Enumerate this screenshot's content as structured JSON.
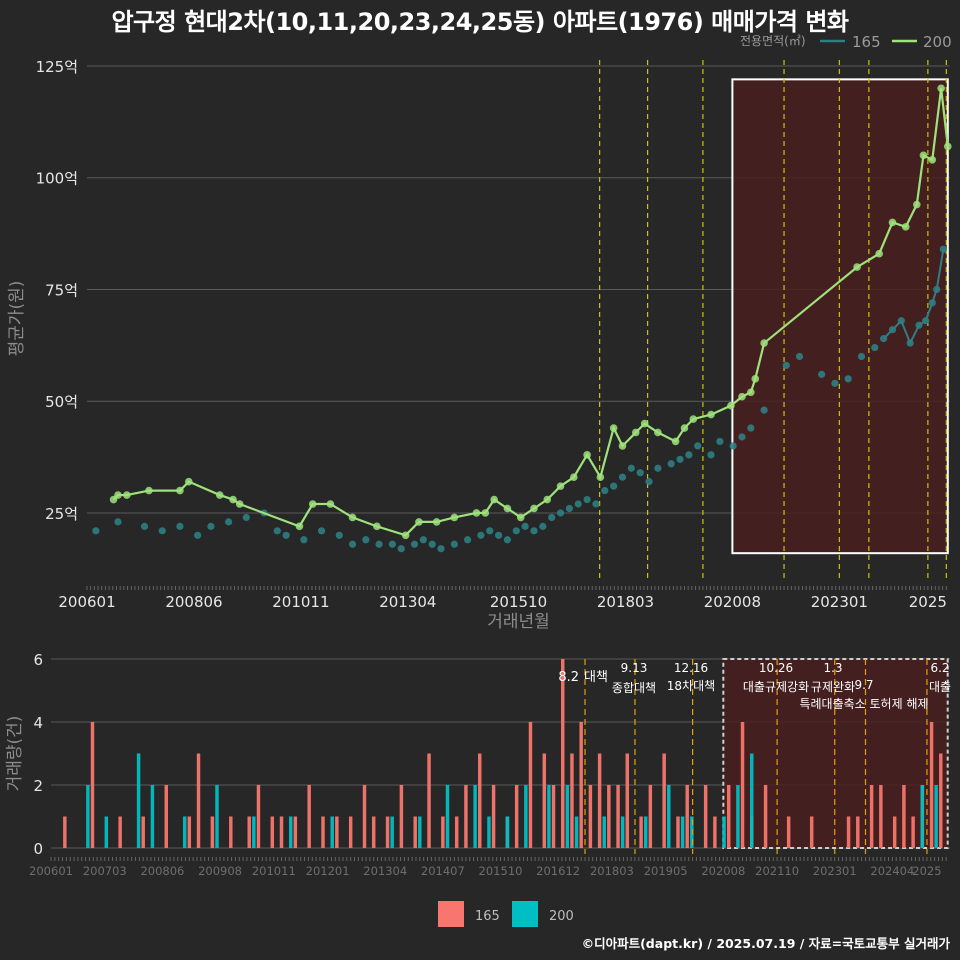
{
  "title": "압구정 현대2차(10,11,20,23,24,25동) 아파트(1976) 매매가격 변화",
  "credit": "©디아파트(dapt.kr) / 2025.07.19 / 자료=국토교통부 실거래가",
  "colors": {
    "background": "#272727",
    "s165_price": "#2e7f84",
    "s200_price": "#9ee27c",
    "s165_volume": "#f8766d",
    "s200_volume": "#00bfc4",
    "policy_line": "#c8c800",
    "policy_line_volume": "#e6a000",
    "highlight": "#4a1e1e"
  },
  "chart_data": [
    {
      "type": "line",
      "chart_id": "price",
      "ylabel": "평균가(원)",
      "xlabel": "거래년월",
      "ylim": [
        10,
        127
      ],
      "yticks": [
        25,
        50,
        75,
        100,
        125
      ],
      "ytick_labels": [
        "25억",
        "50억",
        "75억",
        "100억",
        "125억"
      ],
      "xlim": [
        2006.0,
        2025.5
      ],
      "xticks": [
        2006.0,
        2008.417,
        2010.833,
        2013.25,
        2015.75,
        2018.167,
        2020.583,
        2023.0,
        2025.0
      ],
      "xtick_labels": [
        "200601",
        "200806",
        "201011",
        "201304",
        "201510",
        "201803",
        "202008",
        "202301",
        "2025"
      ],
      "legend": {
        "title": "전용면적(㎡)",
        "position": "top-right",
        "items": [
          "165",
          "200"
        ]
      },
      "grid": true,
      "policy_lines": [
        2017.583,
        2018.667,
        2019.917,
        2021.75,
        2023.0,
        2023.667,
        2025.0,
        2025.417
      ],
      "highlight_box": {
        "x0": 2020.583,
        "x1": 2025.45,
        "y0": 16,
        "y1": 122
      },
      "series": [
        {
          "name": "200",
          "x": [
            2006.6,
            2006.7,
            2006.9,
            2007.4,
            2008.1,
            2008.3,
            2009.0,
            2009.3,
            2009.45,
            2010.8,
            2011.1,
            2011.5,
            2012.0,
            2012.55,
            2013.2,
            2013.5,
            2013.9,
            2014.3,
            2014.8,
            2015.0,
            2015.2,
            2015.5,
            2015.8,
            2016.1,
            2016.4,
            2016.7,
            2017.0,
            2017.3,
            2017.6,
            2017.9,
            2018.1,
            2018.4,
            2018.6,
            2018.9,
            2019.3,
            2019.5,
            2019.7,
            2020.1,
            2020.55,
            2020.8,
            2021.0,
            2021.1,
            2021.3,
            2023.4,
            2023.9,
            2024.2,
            2024.5,
            2024.75,
            2024.9,
            2025.1,
            2025.3,
            2025.45
          ],
          "y": [
            28,
            29,
            29,
            30,
            30,
            32,
            29,
            28,
            27,
            22,
            27,
            27,
            24,
            22,
            20,
            23,
            23,
            24,
            25,
            25,
            28,
            26,
            24,
            26,
            28,
            31,
            33,
            38,
            33,
            44,
            40,
            43,
            45,
            43,
            41,
            44,
            46,
            47,
            49,
            51,
            52,
            55,
            63,
            80,
            83,
            90,
            89,
            94,
            105,
            104,
            120,
            107
          ]
        },
        {
          "name": "165",
          "x": [
            2006.2,
            2006.7,
            2007.3,
            2007.7,
            2008.1,
            2008.5,
            2008.8,
            2009.2,
            2009.6,
            2010.0,
            2010.3,
            2010.5,
            2010.9,
            2011.3,
            2011.7,
            2012.0,
            2012.3,
            2012.6,
            2012.9,
            2013.1,
            2013.4,
            2013.6,
            2013.8,
            2014.0,
            2014.3,
            2014.6,
            2014.9,
            2015.1,
            2015.3,
            2015.5,
            2015.7,
            2015.9,
            2016.1,
            2016.3,
            2016.5,
            2016.7,
            2016.9,
            2017.1,
            2017.3,
            2017.5,
            2017.7,
            2017.9,
            2018.1,
            2018.3,
            2018.5,
            2018.7,
            2018.9,
            2019.2,
            2019.4,
            2019.6,
            2019.8,
            2020.1,
            2020.3,
            2020.6,
            2020.8,
            2021.0,
            2021.3,
            2021.8,
            2022.1,
            2022.6,
            2022.9,
            2023.2,
            2023.5,
            2023.8,
            2024.0,
            2024.2,
            2024.4,
            2024.6,
            2024.8,
            2024.95,
            2025.1,
            2025.2,
            2025.35
          ],
          "y": [
            21,
            23,
            22,
            21,
            22,
            20,
            22,
            23,
            24,
            25,
            21,
            20,
            19,
            21,
            20,
            18,
            19,
            18,
            18,
            17,
            18,
            19,
            18,
            17,
            18,
            19,
            20,
            21,
            20,
            19,
            21,
            22,
            21,
            22,
            24,
            25,
            26,
            27,
            28,
            27,
            30,
            31,
            33,
            35,
            34,
            32,
            35,
            36,
            37,
            38,
            40,
            38,
            41,
            40,
            42,
            44,
            48,
            58,
            60,
            56,
            54,
            55,
            60,
            62,
            64,
            66,
            68,
            63,
            67,
            68,
            72,
            75,
            84
          ]
        }
      ]
    },
    {
      "type": "bar",
      "chart_id": "volume",
      "ylabel": "거래량(건)",
      "ylim": [
        0,
        6
      ],
      "yticks": [
        0,
        2,
        4,
        6
      ],
      "ytick_labels": [
        "0",
        "2",
        "4",
        "6"
      ],
      "xlim": [
        2006.0,
        2025.5
      ],
      "xticks": [
        2006.0,
        2007.167,
        2008.417,
        2009.667,
        2010.833,
        2012.0,
        2013.25,
        2014.5,
        2015.75,
        2017.0,
        2018.167,
        2019.333,
        2020.583,
        2021.75,
        2023.0,
        2024.25,
        2025.0
      ],
      "xtick_labels": [
        "200601",
        "200703",
        "200806",
        "200908",
        "201011",
        "201201",
        "201304",
        "201407",
        "201510",
        "201612",
        "201803",
        "201905",
        "202008",
        "202110",
        "202301",
        "202404",
        "2025"
      ],
      "legend": {
        "position": "bottom",
        "items": [
          "165",
          "200"
        ]
      },
      "grid": true,
      "highlight_box": {
        "x0": 2020.583,
        "x1": 2025.45,
        "y0": 0,
        "y1": 6
      },
      "annotations": [
        {
          "x": 2017.583,
          "date": "8.2",
          "label": "대책"
        },
        {
          "x": 2018.667,
          "date": "9.13",
          "label": "종합대책"
        },
        {
          "x": 2019.917,
          "date": "12.16",
          "label": "18차대책"
        },
        {
          "x": 2021.75,
          "date": "10.26",
          "label": "대출규제강화"
        },
        {
          "x": 2023.0,
          "date": "1.3",
          "label": "규제완화"
        },
        {
          "x": 2023.667,
          "date": "9.7",
          "label": "특례대출축소 토허제 해제"
        },
        {
          "x": 2025.0,
          "date": "6.2",
          "label": "대출"
        }
      ],
      "series": [
        {
          "name": "165",
          "x": [
            2006.3,
            2006.9,
            2007.5,
            2008.0,
            2008.5,
            2009.0,
            2009.2,
            2009.5,
            2009.9,
            2010.3,
            2010.5,
            2010.8,
            2011.0,
            2011.3,
            2011.6,
            2011.9,
            2012.2,
            2012.5,
            2012.8,
            2013.0,
            2013.3,
            2013.6,
            2013.9,
            2014.2,
            2014.5,
            2014.8,
            2015.0,
            2015.3,
            2015.6,
            2015.9,
            2016.1,
            2016.4,
            2016.7,
            2016.9,
            2017.1,
            2017.3,
            2017.5,
            2017.7,
            2017.9,
            2018.1,
            2018.3,
            2018.5,
            2018.8,
            2019.0,
            2019.3,
            2019.6,
            2019.8,
            2020.2,
            2020.4,
            2020.7,
            2021.0,
            2021.2,
            2021.5,
            2022.0,
            2022.5,
            2023.3,
            2023.5,
            2023.8,
            2024.0,
            2024.3,
            2024.5,
            2024.7,
            2024.9,
            2025.1,
            2025.3
          ],
          "y": [
            1,
            4,
            1,
            1,
            2,
            1,
            3,
            1,
            1,
            1,
            2,
            1,
            1,
            1,
            2,
            1,
            1,
            1,
            2,
            1,
            1,
            2,
            1,
            3,
            1,
            1,
            2,
            3,
            2,
            1,
            2,
            4,
            3,
            2,
            6,
            3,
            4,
            2,
            3,
            2,
            2,
            3,
            1,
            2,
            3,
            1,
            2,
            2,
            1,
            2,
            4,
            1,
            2,
            1,
            1,
            1,
            1,
            2,
            2,
            1,
            2,
            1,
            2,
            4,
            3
          ]
        },
        {
          "name": "200",
          "x": [
            2006.8,
            2007.2,
            2007.9,
            2008.2,
            2008.9,
            2009.6,
            2010.4,
            2011.2,
            2012.1,
            2013.4,
            2014.0,
            2014.6,
            2015.2,
            2015.5,
            2015.9,
            2016.3,
            2016.8,
            2017.2,
            2017.4,
            2018.0,
            2018.4,
            2018.9,
            2019.4,
            2019.7,
            2019.9,
            2020.6,
            2020.9,
            2021.2,
            2024.9,
            2025.2
          ],
          "y": [
            2,
            1,
            3,
            2,
            1,
            2,
            1,
            1,
            1,
            1,
            1,
            2,
            2,
            1,
            1,
            2,
            2,
            2,
            1,
            1,
            1,
            1,
            2,
            1,
            1,
            1,
            2,
            3,
            2,
            2
          ]
        }
      ]
    }
  ]
}
